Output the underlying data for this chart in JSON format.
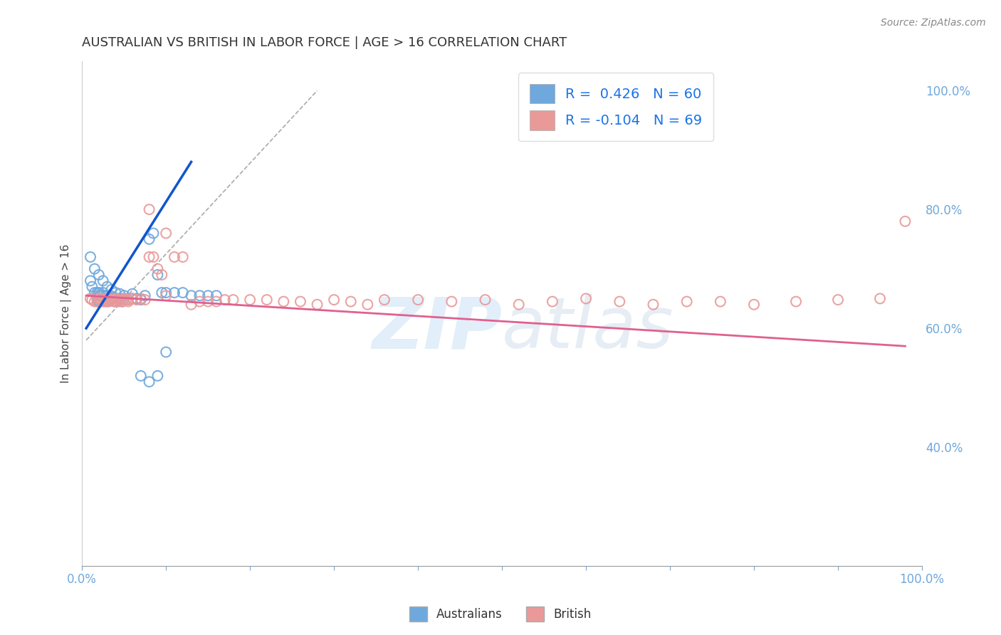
{
  "title": "AUSTRALIAN VS BRITISH IN LABOR FORCE | AGE > 16 CORRELATION CHART",
  "source": "Source: ZipAtlas.com",
  "ylabel": "In Labor Force | Age > 16",
  "xlim": [
    0.0,
    1.0
  ],
  "ylim": [
    0.2,
    1.05
  ],
  "x_ticks": [
    0.0,
    0.1,
    0.2,
    0.3,
    0.4,
    0.5,
    0.6,
    0.7,
    0.8,
    0.9,
    1.0
  ],
  "x_tick_labels_show": [
    "0.0%",
    "",
    "",
    "",
    "",
    "",
    "",
    "",
    "",
    "",
    "100.0%"
  ],
  "y_ticks_right": [
    0.4,
    0.6,
    0.8,
    1.0
  ],
  "y_tick_labels_right": [
    "40.0%",
    "60.0%",
    "80.0%",
    "100.0%"
  ],
  "legend_R_aus": "R =  0.426",
  "legend_N_aus": "N = 60",
  "legend_R_brit": "R = -0.104",
  "legend_N_brit": "N = 69",
  "color_aus": "#6fa8dc",
  "color_brit": "#ea9999",
  "color_aus_line": "#1155cc",
  "color_brit_line": "#e06090",
  "watermark_part1": "ZIP",
  "watermark_part2": "atlas",
  "background_color": "#ffffff",
  "grid_color": "#cccccc",
  "aus_scatter_x": [
    0.01,
    0.012,
    0.015,
    0.018,
    0.018,
    0.02,
    0.02,
    0.02,
    0.022,
    0.022,
    0.025,
    0.025,
    0.028,
    0.028,
    0.03,
    0.03,
    0.03,
    0.032,
    0.032,
    0.034,
    0.034,
    0.036,
    0.038,
    0.04,
    0.04,
    0.042,
    0.044,
    0.046,
    0.048,
    0.05,
    0.055,
    0.06,
    0.065,
    0.07,
    0.075,
    0.08,
    0.085,
    0.09,
    0.095,
    0.1,
    0.01,
    0.015,
    0.02,
    0.025,
    0.03,
    0.035,
    0.04,
    0.045,
    0.05,
    0.06,
    0.07,
    0.08,
    0.09,
    0.1,
    0.11,
    0.12,
    0.13,
    0.14,
    0.15,
    0.16
  ],
  "aus_scatter_y": [
    0.68,
    0.67,
    0.66,
    0.66,
    0.65,
    0.66,
    0.655,
    0.645,
    0.655,
    0.645,
    0.66,
    0.65,
    0.655,
    0.648,
    0.655,
    0.648,
    0.645,
    0.652,
    0.648,
    0.655,
    0.648,
    0.65,
    0.652,
    0.65,
    0.645,
    0.65,
    0.648,
    0.65,
    0.645,
    0.65,
    0.648,
    0.65,
    0.65,
    0.648,
    0.655,
    0.75,
    0.76,
    0.69,
    0.66,
    0.66,
    0.72,
    0.7,
    0.69,
    0.68,
    0.67,
    0.665,
    0.66,
    0.658,
    0.655,
    0.658,
    0.52,
    0.51,
    0.52,
    0.56,
    0.66,
    0.66,
    0.655,
    0.655,
    0.655,
    0.655
  ],
  "brit_scatter_x": [
    0.01,
    0.012,
    0.015,
    0.018,
    0.02,
    0.022,
    0.025,
    0.025,
    0.028,
    0.028,
    0.03,
    0.03,
    0.032,
    0.032,
    0.034,
    0.036,
    0.038,
    0.04,
    0.042,
    0.044,
    0.046,
    0.048,
    0.05,
    0.052,
    0.055,
    0.055,
    0.06,
    0.065,
    0.07,
    0.075,
    0.08,
    0.085,
    0.09,
    0.095,
    0.1,
    0.11,
    0.12,
    0.13,
    0.14,
    0.15,
    0.16,
    0.17,
    0.18,
    0.2,
    0.22,
    0.24,
    0.26,
    0.28,
    0.3,
    0.32,
    0.34,
    0.36,
    0.4,
    0.44,
    0.48,
    0.52,
    0.56,
    0.6,
    0.64,
    0.68,
    0.72,
    0.76,
    0.8,
    0.85,
    0.9,
    0.95,
    0.98,
    0.08,
    0.1
  ],
  "brit_scatter_y": [
    0.65,
    0.648,
    0.645,
    0.645,
    0.65,
    0.648,
    0.65,
    0.645,
    0.648,
    0.645,
    0.65,
    0.648,
    0.65,
    0.645,
    0.648,
    0.648,
    0.645,
    0.65,
    0.648,
    0.645,
    0.648,
    0.645,
    0.65,
    0.648,
    0.648,
    0.645,
    0.65,
    0.648,
    0.65,
    0.648,
    0.72,
    0.72,
    0.7,
    0.69,
    0.655,
    0.72,
    0.72,
    0.64,
    0.645,
    0.645,
    0.645,
    0.648,
    0.648,
    0.648,
    0.648,
    0.645,
    0.645,
    0.64,
    0.648,
    0.645,
    0.64,
    0.648,
    0.648,
    0.645,
    0.648,
    0.64,
    0.645,
    0.65,
    0.645,
    0.64,
    0.645,
    0.645,
    0.64,
    0.645,
    0.648,
    0.65,
    0.78,
    0.8,
    0.76
  ],
  "aus_line_x": [
    0.005,
    0.13
  ],
  "aus_line_y": [
    0.6,
    0.88
  ],
  "aus_ref_line_x": [
    0.005,
    0.28
  ],
  "aus_ref_line_y": [
    0.58,
    1.0
  ],
  "brit_line_x": [
    0.005,
    0.98
  ],
  "brit_line_y": [
    0.655,
    0.57
  ]
}
